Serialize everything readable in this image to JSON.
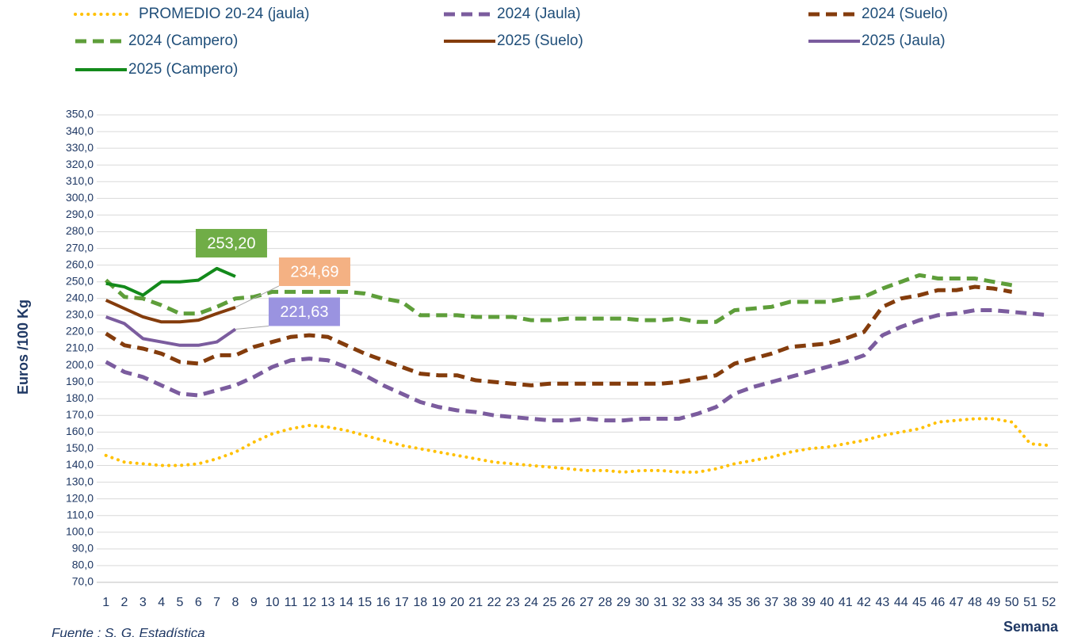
{
  "chart_data": {
    "type": "line",
    "y_label": "Euros /100 Kg",
    "x_label": "Semana",
    "source": "Fuente : S. G. Estadística",
    "grid": true,
    "legend": "top",
    "categories": [
      "1",
      "2",
      "3",
      "4",
      "5",
      "6",
      "7",
      "8",
      "9",
      "10",
      "11",
      "12",
      "13",
      "14",
      "15",
      "16",
      "17",
      "18",
      "19",
      "20",
      "21",
      "22",
      "23",
      "24",
      "25",
      "26",
      "27",
      "28",
      "29",
      "30",
      "31",
      "32",
      "33",
      "34",
      "35",
      "36",
      "37",
      "38",
      "39",
      "40",
      "41",
      "42",
      "43",
      "44",
      "45",
      "46",
      "47",
      "48",
      "49",
      "50",
      "51",
      "52"
    ],
    "ylim": [
      70,
      350
    ],
    "yticks": [
      {
        "value": 70,
        "label": "70,0"
      },
      {
        "value": 80,
        "label": "80,0"
      },
      {
        "value": 90,
        "label": "90,0"
      },
      {
        "value": 100,
        "label": "100,0"
      },
      {
        "value": 110,
        "label": "110,0"
      },
      {
        "value": 120,
        "label": "120,0"
      },
      {
        "value": 130,
        "label": "130,0"
      },
      {
        "value": 140,
        "label": "140,0"
      },
      {
        "value": 150,
        "label": "150,0"
      },
      {
        "value": 160,
        "label": "160,0"
      },
      {
        "value": 170,
        "label": "170,0"
      },
      {
        "value": 180,
        "label": "180,0"
      },
      {
        "value": 190,
        "label": "190,0"
      },
      {
        "value": 200,
        "label": "200,0"
      },
      {
        "value": 210,
        "label": "210,0"
      },
      {
        "value": 220,
        "label": "220,0"
      },
      {
        "value": 230,
        "label": "230,0"
      },
      {
        "value": 240,
        "label": "240,0"
      },
      {
        "value": 250,
        "label": "250,0"
      },
      {
        "value": 260,
        "label": "260,0"
      },
      {
        "value": 270,
        "label": "270,0"
      },
      {
        "value": 280,
        "label": "280,0"
      },
      {
        "value": 290,
        "label": "290,0"
      },
      {
        "value": 300,
        "label": "300,0"
      },
      {
        "value": 310,
        "label": "310,0"
      },
      {
        "value": 320,
        "label": "320,0"
      },
      {
        "value": 330,
        "label": "330,0"
      },
      {
        "value": 340,
        "label": "340,0"
      },
      {
        "value": 350,
        "label": "350,0"
      }
    ],
    "series": [
      {
        "name": "PROMEDIO 20-24 (jaula)",
        "color": "#FFC000",
        "style": "dotted",
        "values": [
          146,
          142,
          141,
          140,
          140,
          141,
          144,
          148,
          154,
          159,
          162,
          164,
          163,
          161,
          158,
          155,
          152,
          150,
          148,
          146,
          144,
          142,
          141,
          140,
          139,
          138,
          137,
          137,
          136,
          137,
          137,
          136,
          136,
          138,
          141,
          143,
          145,
          148,
          150,
          151,
          153,
          155,
          158,
          160,
          162,
          166,
          167,
          168,
          168,
          166,
          153,
          152
        ]
      },
      {
        "name": "2024 (Jaula)",
        "color": "#7B5C9E",
        "style": "dashed",
        "values": [
          202,
          196,
          193,
          188,
          183,
          182,
          185,
          188,
          193,
          199,
          203,
          204,
          203,
          199,
          194,
          188,
          183,
          178,
          175,
          173,
          172,
          170,
          169,
          168,
          167,
          167,
          168,
          167,
          167,
          168,
          168,
          168,
          171,
          175,
          183,
          187,
          190,
          193,
          196,
          199,
          202,
          206,
          218,
          223,
          227,
          230,
          231,
          233,
          233,
          232,
          231,
          230
        ]
      },
      {
        "name": "2024 (Suelo)",
        "color": "#843C0C",
        "style": "dashed",
        "values": [
          219,
          212,
          210,
          207,
          202,
          201,
          206,
          206,
          211,
          214,
          217,
          218,
          217,
          212,
          207,
          203,
          199,
          195,
          194,
          194,
          191,
          190,
          189,
          188,
          189,
          189,
          189,
          189,
          189,
          189,
          189,
          190,
          192,
          194,
          201,
          204,
          207,
          211,
          212,
          213,
          216,
          220,
          235,
          240,
          242,
          245,
          245,
          247,
          246,
          244,
          null,
          null
        ]
      },
      {
        "name": "2024 (Campero)",
        "color": "#5E9E3A",
        "style": "dashed",
        "values": [
          251,
          241,
          240,
          236,
          231,
          231,
          235,
          240,
          241,
          244,
          244,
          244,
          244,
          244,
          243,
          240,
          238,
          230,
          230,
          230,
          229,
          229,
          229,
          227,
          227,
          228,
          228,
          228,
          228,
          227,
          227,
          228,
          226,
          226,
          233,
          234,
          235,
          238,
          238,
          238,
          240,
          241,
          246,
          250,
          254,
          252,
          252,
          252,
          250,
          248,
          null,
          null
        ]
      },
      {
        "name": "2025 (Suelo)",
        "color": "#843C0C",
        "style": "solid",
        "label_color": "#F4B183",
        "values": [
          239,
          234,
          229,
          226,
          226,
          227,
          231,
          234.69,
          null,
          null,
          null,
          null,
          null,
          null,
          null,
          null,
          null,
          null,
          null,
          null,
          null,
          null,
          null,
          null,
          null,
          null,
          null,
          null,
          null,
          null,
          null,
          null,
          null,
          null,
          null,
          null,
          null,
          null,
          null,
          null,
          null,
          null,
          null,
          null,
          null,
          null,
          null,
          null,
          null,
          null,
          null,
          null
        ],
        "value_labels": [
          null,
          null,
          null,
          null,
          null,
          null,
          null,
          "234,69",
          null,
          null,
          null,
          null,
          null,
          null,
          null,
          null,
          null,
          null,
          null,
          null,
          null,
          null,
          null,
          null,
          null,
          null,
          null,
          null,
          null,
          null,
          null,
          null,
          null,
          null,
          null,
          null,
          null,
          null,
          null,
          null,
          null,
          null,
          null,
          null,
          null,
          null,
          null,
          null,
          null,
          null,
          null,
          null
        ]
      },
      {
        "name": "2025 (Jaula)",
        "color": "#7B5C9E",
        "style": "solid",
        "label_color": "#9A93E0",
        "values": [
          229,
          225,
          216,
          214,
          212,
          212,
          214,
          221.63,
          null,
          null,
          null,
          null,
          null,
          null,
          null,
          null,
          null,
          null,
          null,
          null,
          null,
          null,
          null,
          null,
          null,
          null,
          null,
          null,
          null,
          null,
          null,
          null,
          null,
          null,
          null,
          null,
          null,
          null,
          null,
          null,
          null,
          null,
          null,
          null,
          null,
          null,
          null,
          null,
          null,
          null,
          null,
          null
        ],
        "value_labels": [
          null,
          null,
          null,
          null,
          null,
          null,
          null,
          "221,63",
          null,
          null,
          null,
          null,
          null,
          null,
          null,
          null,
          null,
          null,
          null,
          null,
          null,
          null,
          null,
          null,
          null,
          null,
          null,
          null,
          null,
          null,
          null,
          null,
          null,
          null,
          null,
          null,
          null,
          null,
          null,
          null,
          null,
          null,
          null,
          null,
          null,
          null,
          null,
          null,
          null,
          null,
          null,
          null
        ]
      },
      {
        "name": "2025 (Campero)",
        "color": "#138A1B",
        "style": "solid",
        "label_color": "#70AD47",
        "values": [
          249,
          247,
          242,
          250,
          250,
          251,
          258,
          253.2,
          null,
          null,
          null,
          null,
          null,
          null,
          null,
          null,
          null,
          null,
          null,
          null,
          null,
          null,
          null,
          null,
          null,
          null,
          null,
          null,
          null,
          null,
          null,
          null,
          null,
          null,
          null,
          null,
          null,
          null,
          null,
          null,
          null,
          null,
          null,
          null,
          null,
          null,
          null,
          null,
          null,
          null,
          null,
          null
        ],
        "value_labels": [
          null,
          null,
          null,
          null,
          null,
          null,
          null,
          "253,20",
          null,
          null,
          null,
          null,
          null,
          null,
          null,
          null,
          null,
          null,
          null,
          null,
          null,
          null,
          null,
          null,
          null,
          null,
          null,
          null,
          null,
          null,
          null,
          null,
          null,
          null,
          null,
          null,
          null,
          null,
          null,
          null,
          null,
          null,
          null,
          null,
          null,
          null,
          null,
          null,
          null,
          null,
          null,
          null
        ]
      }
    ]
  }
}
